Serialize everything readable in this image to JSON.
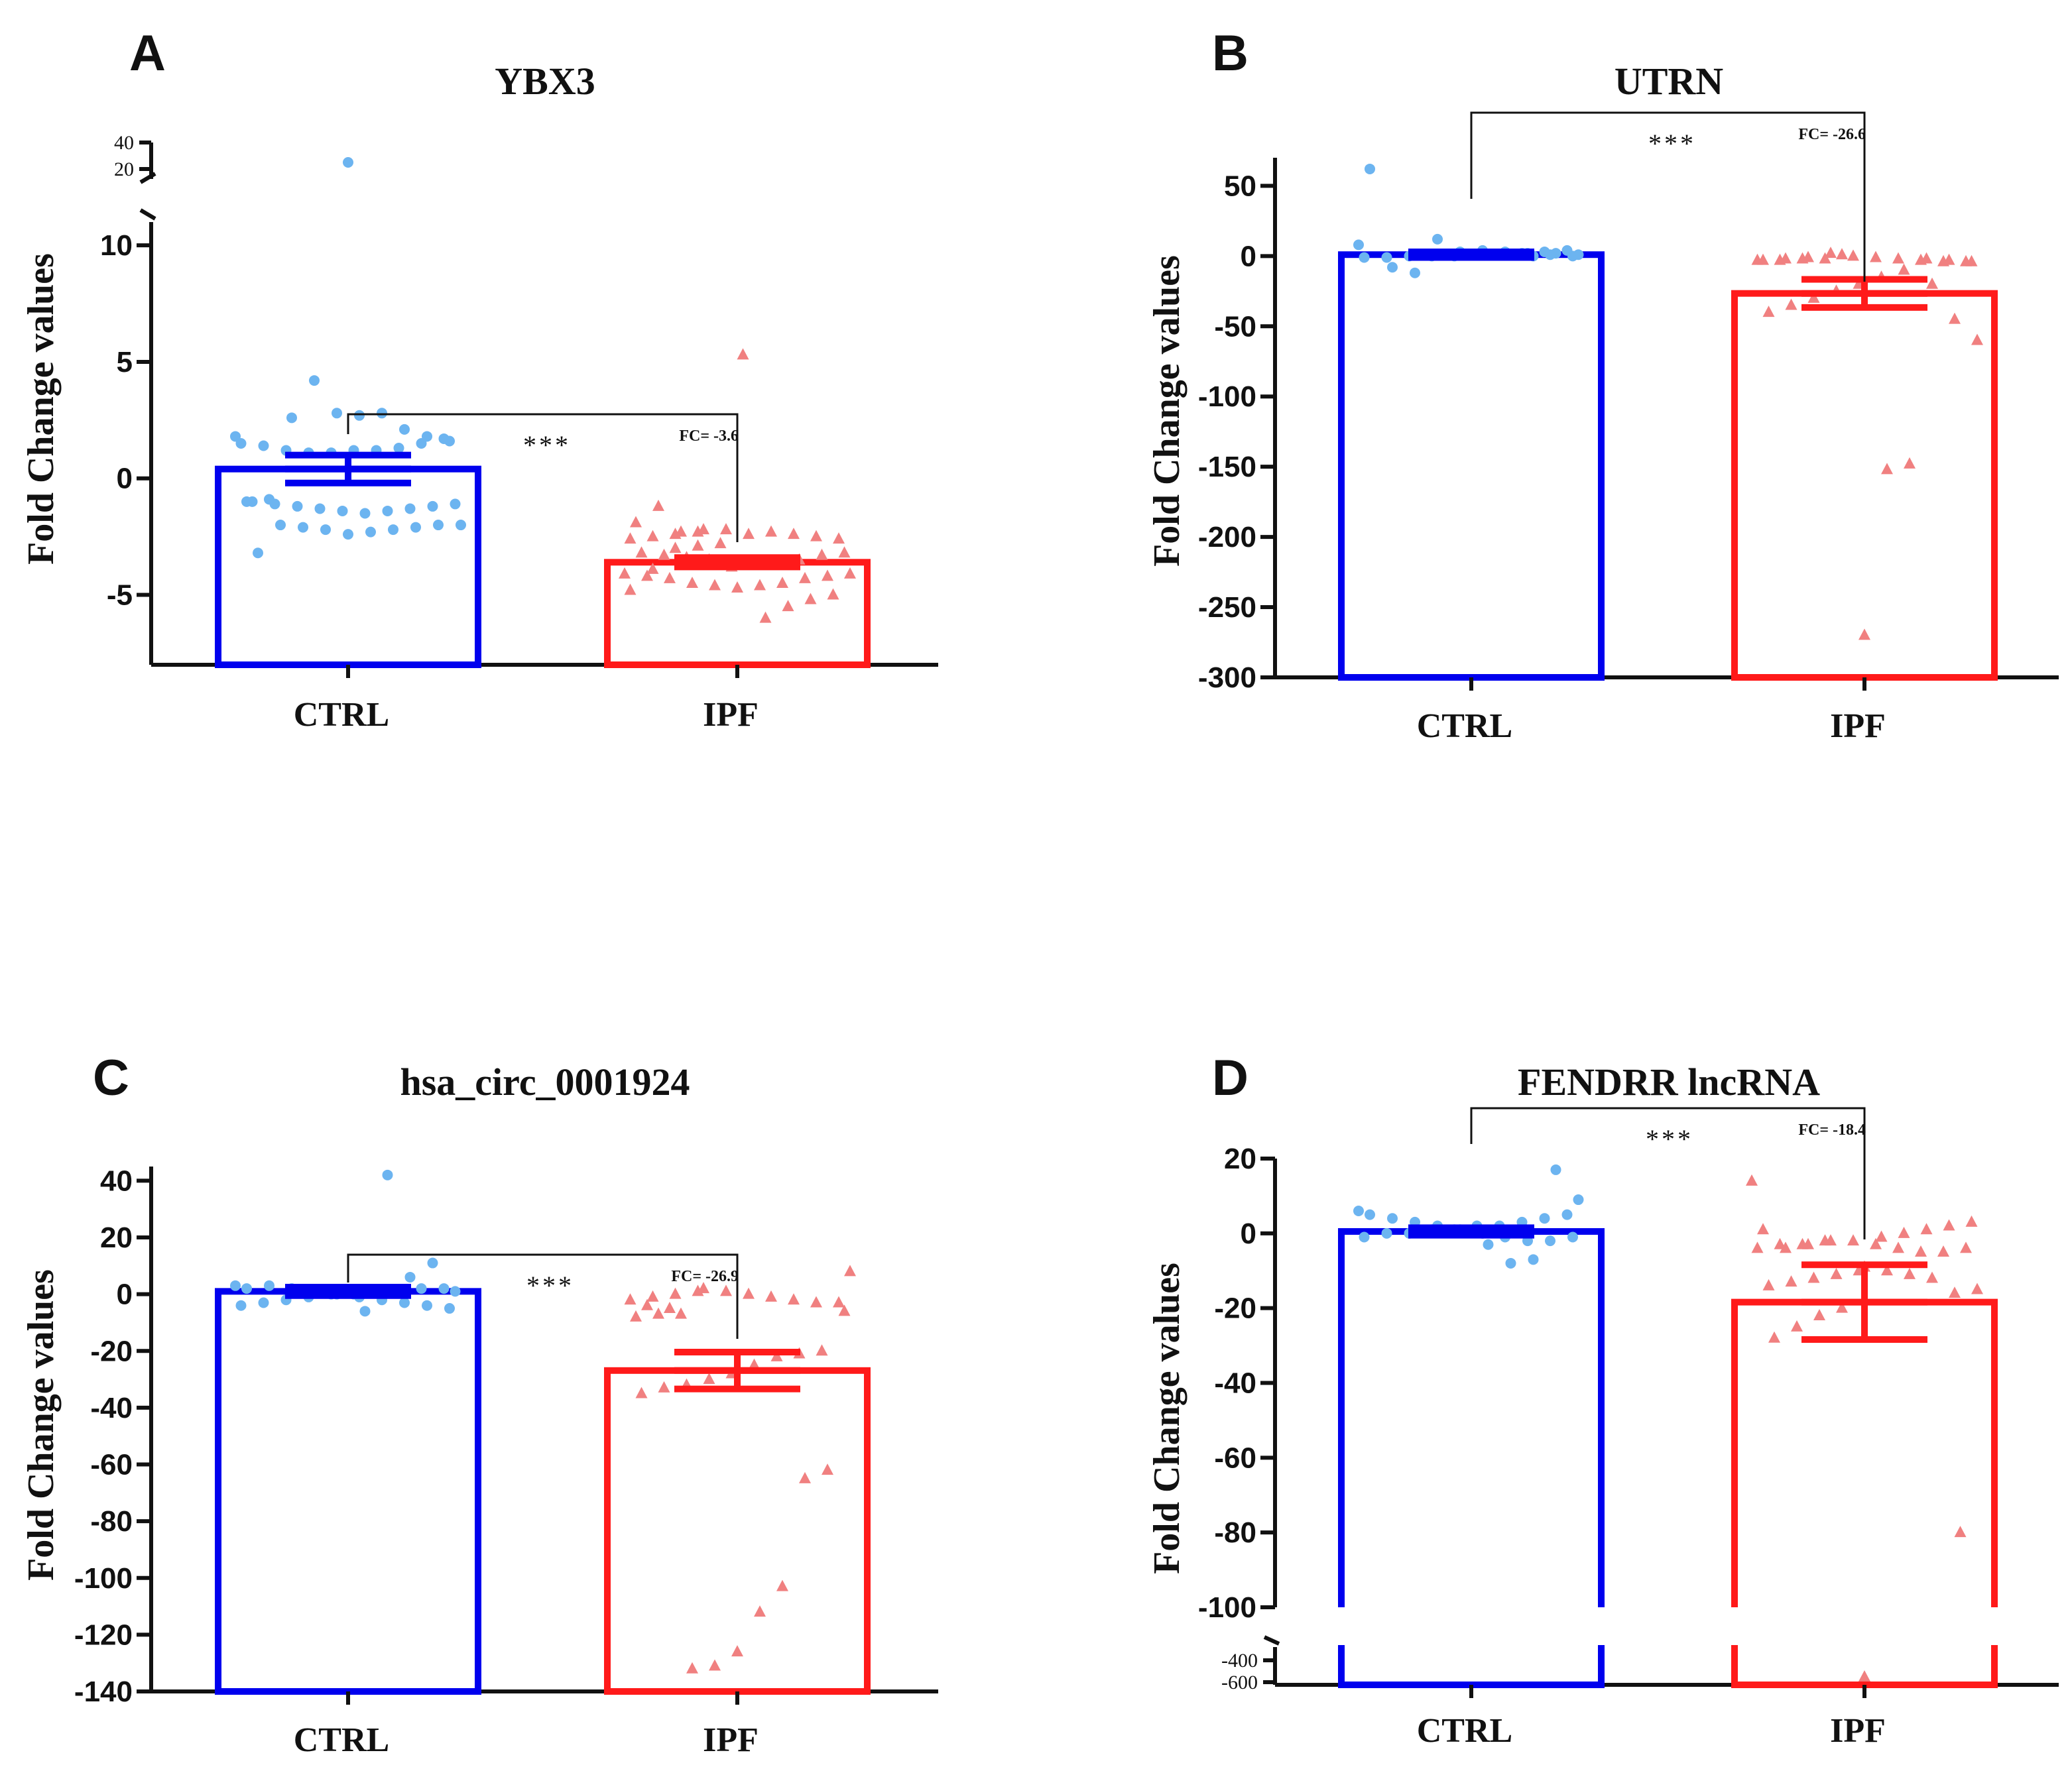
{
  "figure": {
    "colors": {
      "ctrl_bar": "#0000ee",
      "ctrl_points": "#6cb4f0",
      "ipf_bar": "#ff1a1a",
      "ipf_points": "#f08080",
      "axis": "#111111"
    }
  },
  "chart_data": [
    {
      "letter": "A",
      "type": "bar",
      "title": "YBX3",
      "ylabel": "Fold Change values",
      "categories": [
        "CTRL",
        "IPF"
      ],
      "ylim": [
        -8,
        11
      ],
      "yticks": [
        -5,
        0,
        5,
        10
      ],
      "axis_break": {
        "upper_ticks": [
          20,
          40
        ],
        "outlier_values": [
          {
            "group": "CTRL",
            "value": 35
          }
        ]
      },
      "series": [
        {
          "name": "CTRL",
          "mean": 0.4,
          "sem": 0.6,
          "points": [
            1.8,
            1.7,
            1.5,
            1.3,
            1.2,
            1.2,
            1.1,
            1.1,
            1.2,
            1.4,
            1.5,
            1.6,
            1.8,
            2.1,
            2.8,
            2.7,
            2.8,
            4.2,
            2.6,
            -0.9,
            -1.0,
            -1.1,
            -1.2,
            -1.3,
            -1.4,
            -1.5,
            -1.4,
            -1.3,
            -1.2,
            -1.1,
            -1.0,
            -2.0,
            -2.0,
            -2.1,
            -2.2,
            -2.3,
            -2.4,
            -2.2,
            -2.1,
            -2.0,
            -3.2
          ]
        },
        {
          "name": "IPF",
          "mean": -3.6,
          "sem": 0.2,
          "points": [
            -2.3,
            -2.4,
            -2.5,
            -2.6,
            -2.6,
            -2.5,
            -2.4,
            -2.3,
            -2.4,
            -2.2,
            -2.2,
            -2.3,
            -1.2,
            -1.9,
            -3.2,
            -3.3,
            -3.5,
            -3.6,
            -3.7,
            -3.8,
            -3.5,
            -3.4,
            -3.3,
            -3.2,
            -4.1,
            -4.2,
            -4.3,
            -4.5,
            -4.6,
            -4.7,
            -4.6,
            -4.5,
            -4.3,
            -4.2,
            -4.1,
            -5.0,
            -5.2,
            -5.5,
            -6.0,
            5.3,
            -2.8,
            -2.9,
            -3.0,
            -3.9,
            -4.8
          ]
        }
      ],
      "significance": "***",
      "fold_change": "FC= -3.6",
      "bracket_value": 2.9
    },
    {
      "letter": "B",
      "type": "bar",
      "title": "UTRN",
      "ylabel": "Fold Change values",
      "categories": [
        "CTRL",
        "IPF"
      ],
      "ylim": [
        -300,
        70
      ],
      "yticks": [
        -300,
        -250,
        -200,
        -150,
        -100,
        -50,
        0,
        50
      ],
      "series": [
        {
          "name": "CTRL",
          "mean": 1,
          "sem": 2,
          "points": [
            8,
            4,
            3,
            2,
            1,
            1,
            0,
            0,
            0,
            -1,
            -1,
            0,
            1,
            2,
            3,
            4,
            3,
            12,
            -12,
            -8,
            62,
            1,
            2,
            0
          ]
        },
        {
          "name": "IPF",
          "mean": -26.6,
          "sem": 10,
          "points": [
            -2,
            -2,
            -3,
            -3,
            -4,
            -4,
            -3,
            -2,
            -1,
            0,
            2,
            -1,
            -2,
            -3,
            -4,
            -3,
            -2,
            -10,
            -15,
            -20,
            -25,
            -30,
            -35,
            -40,
            -60,
            -45,
            -20,
            -148,
            -152,
            -270,
            1
          ]
        }
      ],
      "significance": "***",
      "fold_change": "FC= -26.6",
      "bracket_value": 40
    },
    {
      "letter": "C",
      "type": "bar",
      "title": "hsa_circ_0001924",
      "ylabel": "Fold Change values",
      "categories": [
        "CTRL",
        "IPF"
      ],
      "ylim": [
        -140,
        45
      ],
      "yticks": [
        -140,
        -120,
        -100,
        -80,
        -60,
        -40,
        -20,
        0,
        20,
        40
      ],
      "series": [
        {
          "name": "CTRL",
          "mean": 1,
          "sem": 1.5,
          "points": [
            3,
            2,
            2,
            1,
            1,
            0,
            0,
            -1,
            -2,
            -3,
            -4,
            -5,
            -4,
            -3,
            -2,
            -1,
            0,
            1,
            2,
            3,
            2,
            1,
            11,
            6,
            42,
            -6
          ]
        },
        {
          "name": "IPF",
          "mean": -26.9,
          "sem": 6.5,
          "points": [
            1,
            0,
            -1,
            -2,
            -3,
            -3,
            -2,
            -1,
            0,
            1,
            2,
            -7,
            -7,
            -8,
            -6,
            -20,
            -21,
            -22,
            -25,
            -28,
            -30,
            -32,
            -33,
            -35,
            8,
            -62,
            -65,
            -103,
            -112,
            -126,
            -131,
            -132,
            -5,
            -4
          ]
        }
      ],
      "significance": "***",
      "fold_change": "FC= -26.9",
      "bracket_value": 18
    },
    {
      "letter": "D",
      "type": "bar",
      "title": "FENDRR lncRNA",
      "ylabel": "Fold Change values",
      "categories": [
        "CTRL",
        "IPF"
      ],
      "ylim": [
        -100,
        20
      ],
      "yticks": [
        -100,
        -80,
        -60,
        -40,
        -20,
        0,
        20
      ],
      "axis_break": {
        "lower_ticks": [
          -400,
          -600
        ],
        "outlier_values": [
          {
            "group": "IPF",
            "value": -600
          }
        ]
      },
      "series": [
        {
          "name": "CTRL",
          "mean": 0.5,
          "sem": 1,
          "points": [
            6,
            5,
            4,
            3,
            2,
            2,
            1,
            1,
            0,
            0,
            -1,
            -1,
            -2,
            -2,
            -1,
            0,
            1,
            2,
            3,
            4,
            5,
            9,
            17,
            -7,
            -8,
            -3
          ]
        },
        {
          "name": "IPF",
          "mean": -18.4,
          "sem": 10,
          "points": [
            -2,
            -3,
            -3,
            -4,
            -4,
            -5,
            -5,
            -4,
            -3,
            -2,
            -2,
            -3,
            -4,
            1,
            3,
            2,
            1,
            0,
            -1,
            -10,
            -11,
            -12,
            -13,
            -14,
            -15,
            -16,
            -12,
            -11,
            -10,
            -9,
            -20,
            -22,
            -25,
            -28,
            14,
            -80
          ]
        }
      ],
      "significance": "***",
      "fold_change": "FC= -18.4",
      "bracket_value": 33
    }
  ]
}
